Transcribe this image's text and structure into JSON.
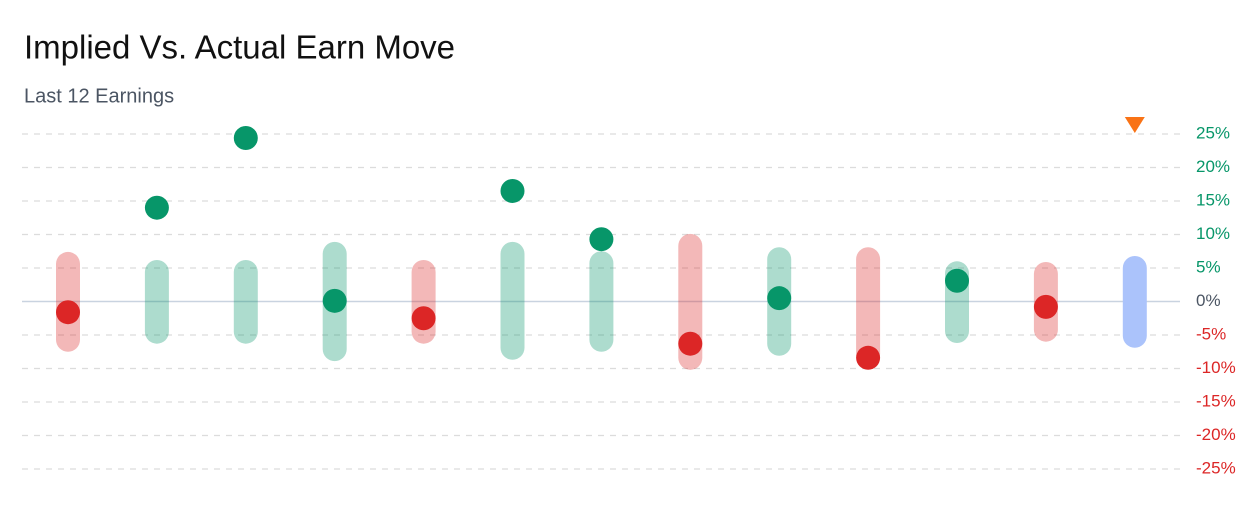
{
  "chart_data": {
    "type": "range_dot",
    "title": "Implied Vs. Actual Earn Move",
    "subtitle": "Last 12 Earnings",
    "implied_high": [
      7.4,
      6.2,
      6.2,
      8.9,
      6.2,
      8.9,
      7.5,
      10.1,
      8.1,
      8.1,
      6.0,
      5.9,
      6.8
    ],
    "implied_low": [
      -7.5,
      -6.3,
      -6.3,
      -8.9,
      -6.3,
      -8.7,
      -7.5,
      -10.2,
      -8.1,
      -9.6,
      -6.2,
      -6.0,
      -6.9
    ],
    "actual": [
      -1.6,
      14.0,
      24.4,
      0.1,
      -2.5,
      16.5,
      9.3,
      -6.3,
      0.5,
      -8.4,
      3.1,
      -0.8,
      null
    ],
    "up_color": "#079669",
    "down_color": "#dc2626",
    "upcoming_color": "#abc3fb",
    "marker_color": "#f97316",
    "ylim": [
      -25,
      25
    ],
    "yticks": [
      {
        "value": 25,
        "label": "25%"
      },
      {
        "value": 20,
        "label": "20%"
      },
      {
        "value": 15,
        "label": "15%"
      },
      {
        "value": 10,
        "label": "10%"
      },
      {
        "value": 5,
        "label": "5%"
      },
      {
        "value": 0,
        "label": "0%"
      },
      {
        "value": -5,
        "label": "-5%"
      },
      {
        "value": -10,
        "label": "-10%"
      },
      {
        "value": -15,
        "label": "-15%"
      },
      {
        "value": -20,
        "label": "-20%"
      },
      {
        "value": -25,
        "label": "-25%"
      }
    ],
    "grid": true
  }
}
